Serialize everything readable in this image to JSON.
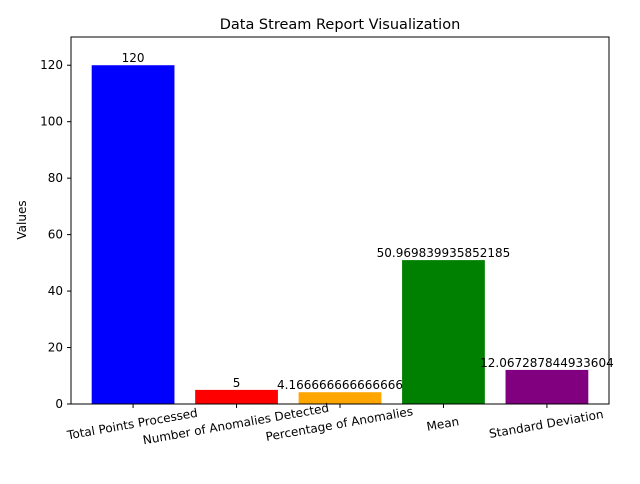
{
  "chart_data": {
    "type": "bar",
    "title": "Data Stream Report Visualization",
    "xlabel": "",
    "ylabel": "Values",
    "ylim": [
      0,
      130
    ],
    "yticks": [
      0,
      20,
      40,
      60,
      80,
      100,
      120
    ],
    "grid": false,
    "categories": [
      "Total Points Processed",
      "Number of Anomalies Detected",
      "Percentage of Anomalies",
      "Mean",
      "Standard Deviation"
    ],
    "values": [
      120,
      5,
      4.166666666666666,
      50.969839935852185,
      12.067287844933604
    ],
    "value_labels": [
      "120",
      "5",
      "4.166666666666666",
      "50.969839935852185",
      "12.067287844933604"
    ],
    "colors": [
      "#0000ff",
      "#ff0000",
      "#ffa500",
      "#008000",
      "#800080"
    ]
  }
}
